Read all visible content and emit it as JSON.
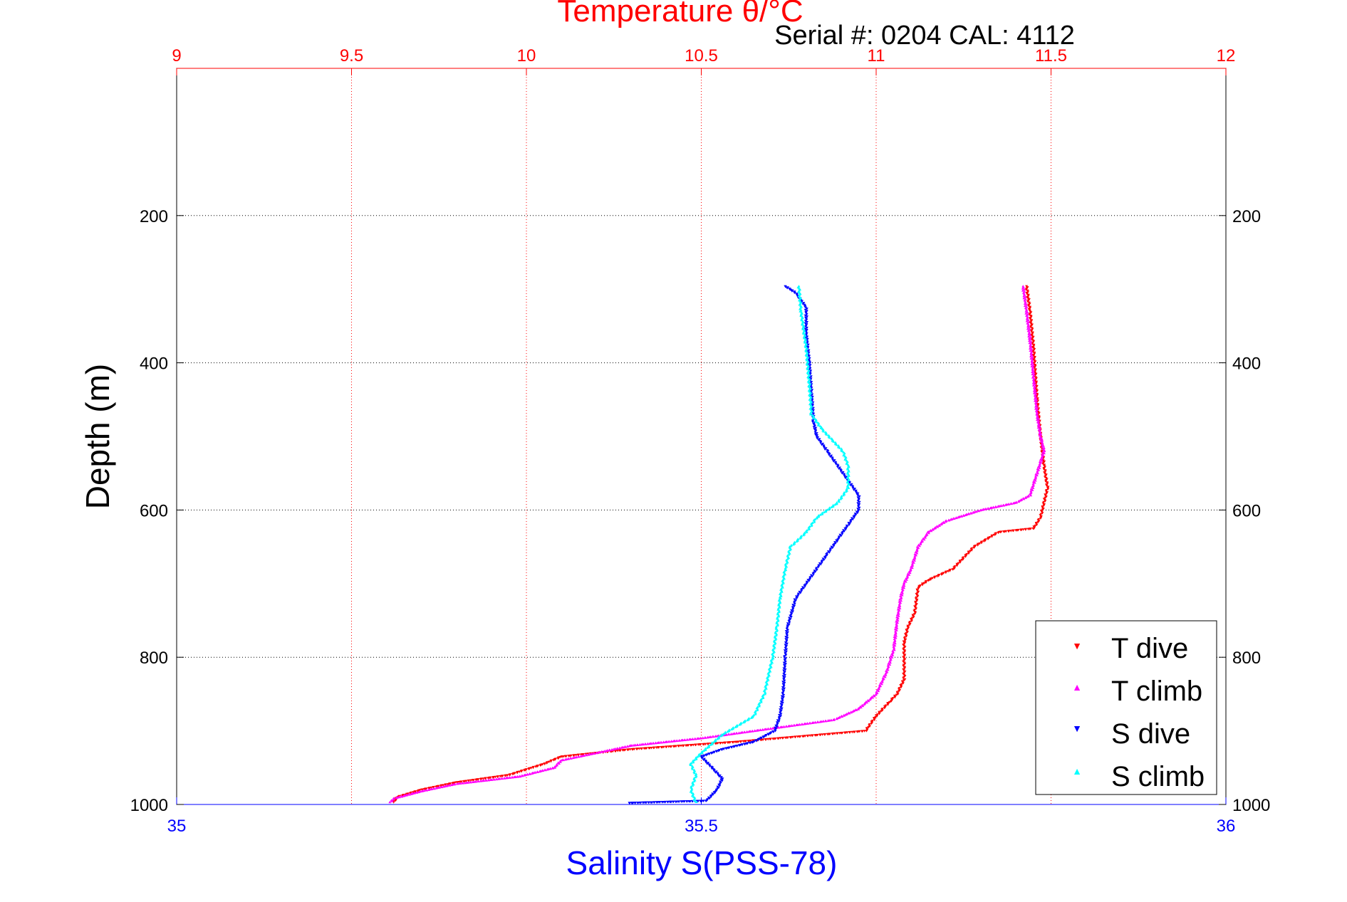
{
  "header": {
    "title": "Temperature θ/°C",
    "serial": "Serial #: 0204  CAL: 4112"
  },
  "colors": {
    "t_dive": "#ff0000",
    "t_climb": "#ff00ff",
    "s_dive": "#0000ff",
    "s_climb": "#00ffff",
    "top_axis": "#ff0000",
    "bottom_axis": "#0000ff"
  },
  "chart_data": {
    "type": "scatter",
    "title": "Temperature θ/°C",
    "xlabel": "Salinity S(PSS-78)",
    "ylabel": "Depth (m)",
    "x_top": {
      "label": "Temperature θ/°C",
      "lim": [
        9,
        12
      ],
      "ticks": [
        "9",
        "9.5",
        "10",
        "10.5",
        "11",
        "11.5",
        "12"
      ]
    },
    "x_bottom": {
      "label": "Salinity S(PSS-78)",
      "lim": [
        35,
        36
      ],
      "ticks": [
        "35",
        "35.5",
        "36"
      ]
    },
    "y": {
      "lim": [
        0,
        1000
      ],
      "reversed": true,
      "ticks": [
        "200",
        "400",
        "600",
        "800",
        "1000"
      ]
    },
    "grid": true,
    "legend_position": "bottom-right",
    "series": [
      {
        "name": "T dive",
        "axis": "temperature",
        "color": "#ff0000",
        "marker": "triangle-down",
        "points": [
          [
            11.43,
            296
          ],
          [
            11.44,
            330
          ],
          [
            11.45,
            380
          ],
          [
            11.46,
            450
          ],
          [
            11.47,
            500
          ],
          [
            11.48,
            540
          ],
          [
            11.49,
            570
          ],
          [
            11.47,
            610
          ],
          [
            11.45,
            625
          ],
          [
            11.35,
            630
          ],
          [
            11.28,
            650
          ],
          [
            11.22,
            680
          ],
          [
            11.15,
            695
          ],
          [
            11.12,
            705
          ],
          [
            11.11,
            740
          ],
          [
            11.09,
            760
          ],
          [
            11.08,
            780
          ],
          [
            11.08,
            830
          ],
          [
            11.06,
            850
          ],
          [
            11.04,
            860
          ],
          [
            11.0,
            880
          ],
          [
            10.97,
            900
          ],
          [
            10.6,
            915
          ],
          [
            10.3,
            925
          ],
          [
            10.1,
            935
          ],
          [
            10.05,
            945
          ],
          [
            9.95,
            960
          ],
          [
            9.8,
            970
          ],
          [
            9.7,
            980
          ],
          [
            9.63,
            990
          ],
          [
            9.62,
            998
          ]
        ]
      },
      {
        "name": "T climb",
        "axis": "temperature",
        "color": "#ff00ff",
        "marker": "triangle-up",
        "points": [
          [
            11.42,
            296
          ],
          [
            11.43,
            330
          ],
          [
            11.44,
            370
          ],
          [
            11.45,
            420
          ],
          [
            11.46,
            470
          ],
          [
            11.47,
            500
          ],
          [
            11.48,
            520
          ],
          [
            11.46,
            550
          ],
          [
            11.44,
            580
          ],
          [
            11.4,
            590
          ],
          [
            11.3,
            600
          ],
          [
            11.2,
            615
          ],
          [
            11.15,
            630
          ],
          [
            11.12,
            650
          ],
          [
            11.1,
            680
          ],
          [
            11.08,
            700
          ],
          [
            11.07,
            720
          ],
          [
            11.06,
            750
          ],
          [
            11.05,
            790
          ],
          [
            11.03,
            820
          ],
          [
            11.0,
            850
          ],
          [
            10.95,
            870
          ],
          [
            10.88,
            885
          ],
          [
            10.5,
            910
          ],
          [
            10.3,
            920
          ],
          [
            10.1,
            940
          ],
          [
            10.08,
            950
          ],
          [
            9.98,
            962
          ],
          [
            9.8,
            972
          ],
          [
            9.7,
            982
          ],
          [
            9.62,
            992
          ],
          [
            9.61,
            998
          ]
        ]
      },
      {
        "name": "S dive",
        "axis": "salinity",
        "color": "#0000ff",
        "marker": "triangle-down",
        "points": [
          [
            35.58,
            296
          ],
          [
            35.59,
            305
          ],
          [
            35.6,
            325
          ],
          [
            35.6,
            360
          ],
          [
            35.603,
            400
          ],
          [
            35.605,
            440
          ],
          [
            35.607,
            480
          ],
          [
            35.61,
            500
          ],
          [
            35.62,
            520
          ],
          [
            35.63,
            540
          ],
          [
            35.64,
            560
          ],
          [
            35.65,
            580
          ],
          [
            35.65,
            600
          ],
          [
            35.64,
            620
          ],
          [
            35.63,
            640
          ],
          [
            35.62,
            660
          ],
          [
            35.61,
            680
          ],
          [
            35.6,
            700
          ],
          [
            35.59,
            720
          ],
          [
            35.582,
            760
          ],
          [
            35.58,
            800
          ],
          [
            35.578,
            850
          ],
          [
            35.575,
            880
          ],
          [
            35.57,
            900
          ],
          [
            35.55,
            915
          ],
          [
            35.52,
            925
          ],
          [
            35.5,
            935
          ],
          [
            35.51,
            950
          ],
          [
            35.52,
            965
          ],
          [
            35.515,
            980
          ],
          [
            35.505,
            995
          ],
          [
            35.43,
            998
          ]
        ]
      },
      {
        "name": "S climb",
        "axis": "salinity",
        "color": "#00ffff",
        "marker": "triangle-up",
        "points": [
          [
            35.593,
            296
          ],
          [
            35.595,
            330
          ],
          [
            35.6,
            380
          ],
          [
            35.603,
            430
          ],
          [
            35.605,
            470
          ],
          [
            35.615,
            490
          ],
          [
            35.625,
            505
          ],
          [
            35.635,
            520
          ],
          [
            35.64,
            540
          ],
          [
            35.64,
            570
          ],
          [
            35.63,
            590
          ],
          [
            35.61,
            610
          ],
          [
            35.6,
            630
          ],
          [
            35.585,
            650
          ],
          [
            35.58,
            680
          ],
          [
            35.575,
            720
          ],
          [
            35.572,
            760
          ],
          [
            35.568,
            800
          ],
          [
            35.56,
            850
          ],
          [
            35.55,
            880
          ],
          [
            35.52,
            905
          ],
          [
            35.5,
            930
          ],
          [
            35.49,
            945
          ],
          [
            35.495,
            960
          ],
          [
            35.49,
            980
          ],
          [
            35.495,
            998
          ]
        ]
      }
    ]
  }
}
